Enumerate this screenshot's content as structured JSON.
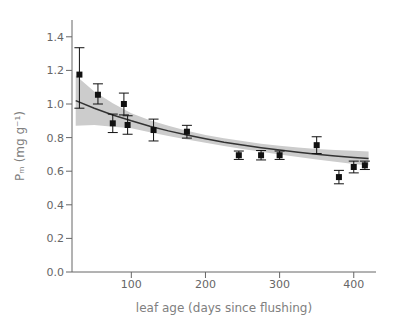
{
  "chart_data": {
    "type": "scatter",
    "xlabel": "leaf age (days since flushing)",
    "ylabel": "Pₘ (mg g⁻¹)",
    "xlim": [
      20,
      430
    ],
    "ylim": [
      0.0,
      1.5
    ],
    "xticks": [
      100,
      200,
      300,
      400
    ],
    "yticks": [
      {
        "value": 0.0,
        "label": "0.0"
      },
      0.2,
      0.4,
      0.6,
      0.8,
      {
        "value": 1.0,
        "label": "1.0"
      },
      1.2,
      1.4
    ],
    "grid": false,
    "series": [
      {
        "type": "area",
        "color": "#cccccc",
        "x": [
          25,
          50,
          75,
          100,
          125,
          150,
          175,
          200,
          225,
          250,
          275,
          300,
          325,
          350,
          375,
          400,
          420
        ],
        "low": [
          0.87,
          0.875,
          0.865,
          0.855,
          0.832,
          0.81,
          0.789,
          0.77,
          0.75,
          0.732,
          0.716,
          0.7,
          0.685,
          0.67,
          0.656,
          0.643,
          0.634
        ],
        "high": [
          1.17,
          1.075,
          1.005,
          0.945,
          0.904,
          0.87,
          0.841,
          0.816,
          0.796,
          0.78,
          0.764,
          0.752,
          0.741,
          0.732,
          0.726,
          0.721,
          0.718
        ]
      },
      {
        "type": "line",
        "color": "#333333",
        "x": [
          25,
          50,
          75,
          100,
          125,
          150,
          175,
          200,
          225,
          250,
          275,
          300,
          325,
          350,
          375,
          400,
          420
        ],
        "values": [
          1.02,
          0.975,
          0.935,
          0.9,
          0.868,
          0.84,
          0.815,
          0.793,
          0.773,
          0.756,
          0.74,
          0.726,
          0.713,
          0.701,
          0.691,
          0.682,
          0.676
        ]
      },
      {
        "type": "scatter",
        "marker": "square",
        "color": "#111111",
        "x": [
          30,
          55,
          75,
          90,
          95,
          130,
          175,
          245,
          275,
          300,
          350,
          380,
          400,
          415
        ],
        "values": [
          1.175,
          1.055,
          0.885,
          1.0,
          0.875,
          0.845,
          0.835,
          0.695,
          0.695,
          0.695,
          0.755,
          0.565,
          0.625,
          0.635
        ],
        "error_low": [
          0.2,
          0.055,
          0.055,
          0.065,
          0.055,
          0.065,
          0.038,
          0.025,
          0.028,
          0.025,
          0.05,
          0.04,
          0.035,
          0.025
        ],
        "error_high": [
          0.16,
          0.065,
          0.055,
          0.065,
          0.055,
          0.065,
          0.038,
          0.025,
          0.028,
          0.025,
          0.05,
          0.04,
          0.035,
          0.025
        ]
      }
    ]
  }
}
